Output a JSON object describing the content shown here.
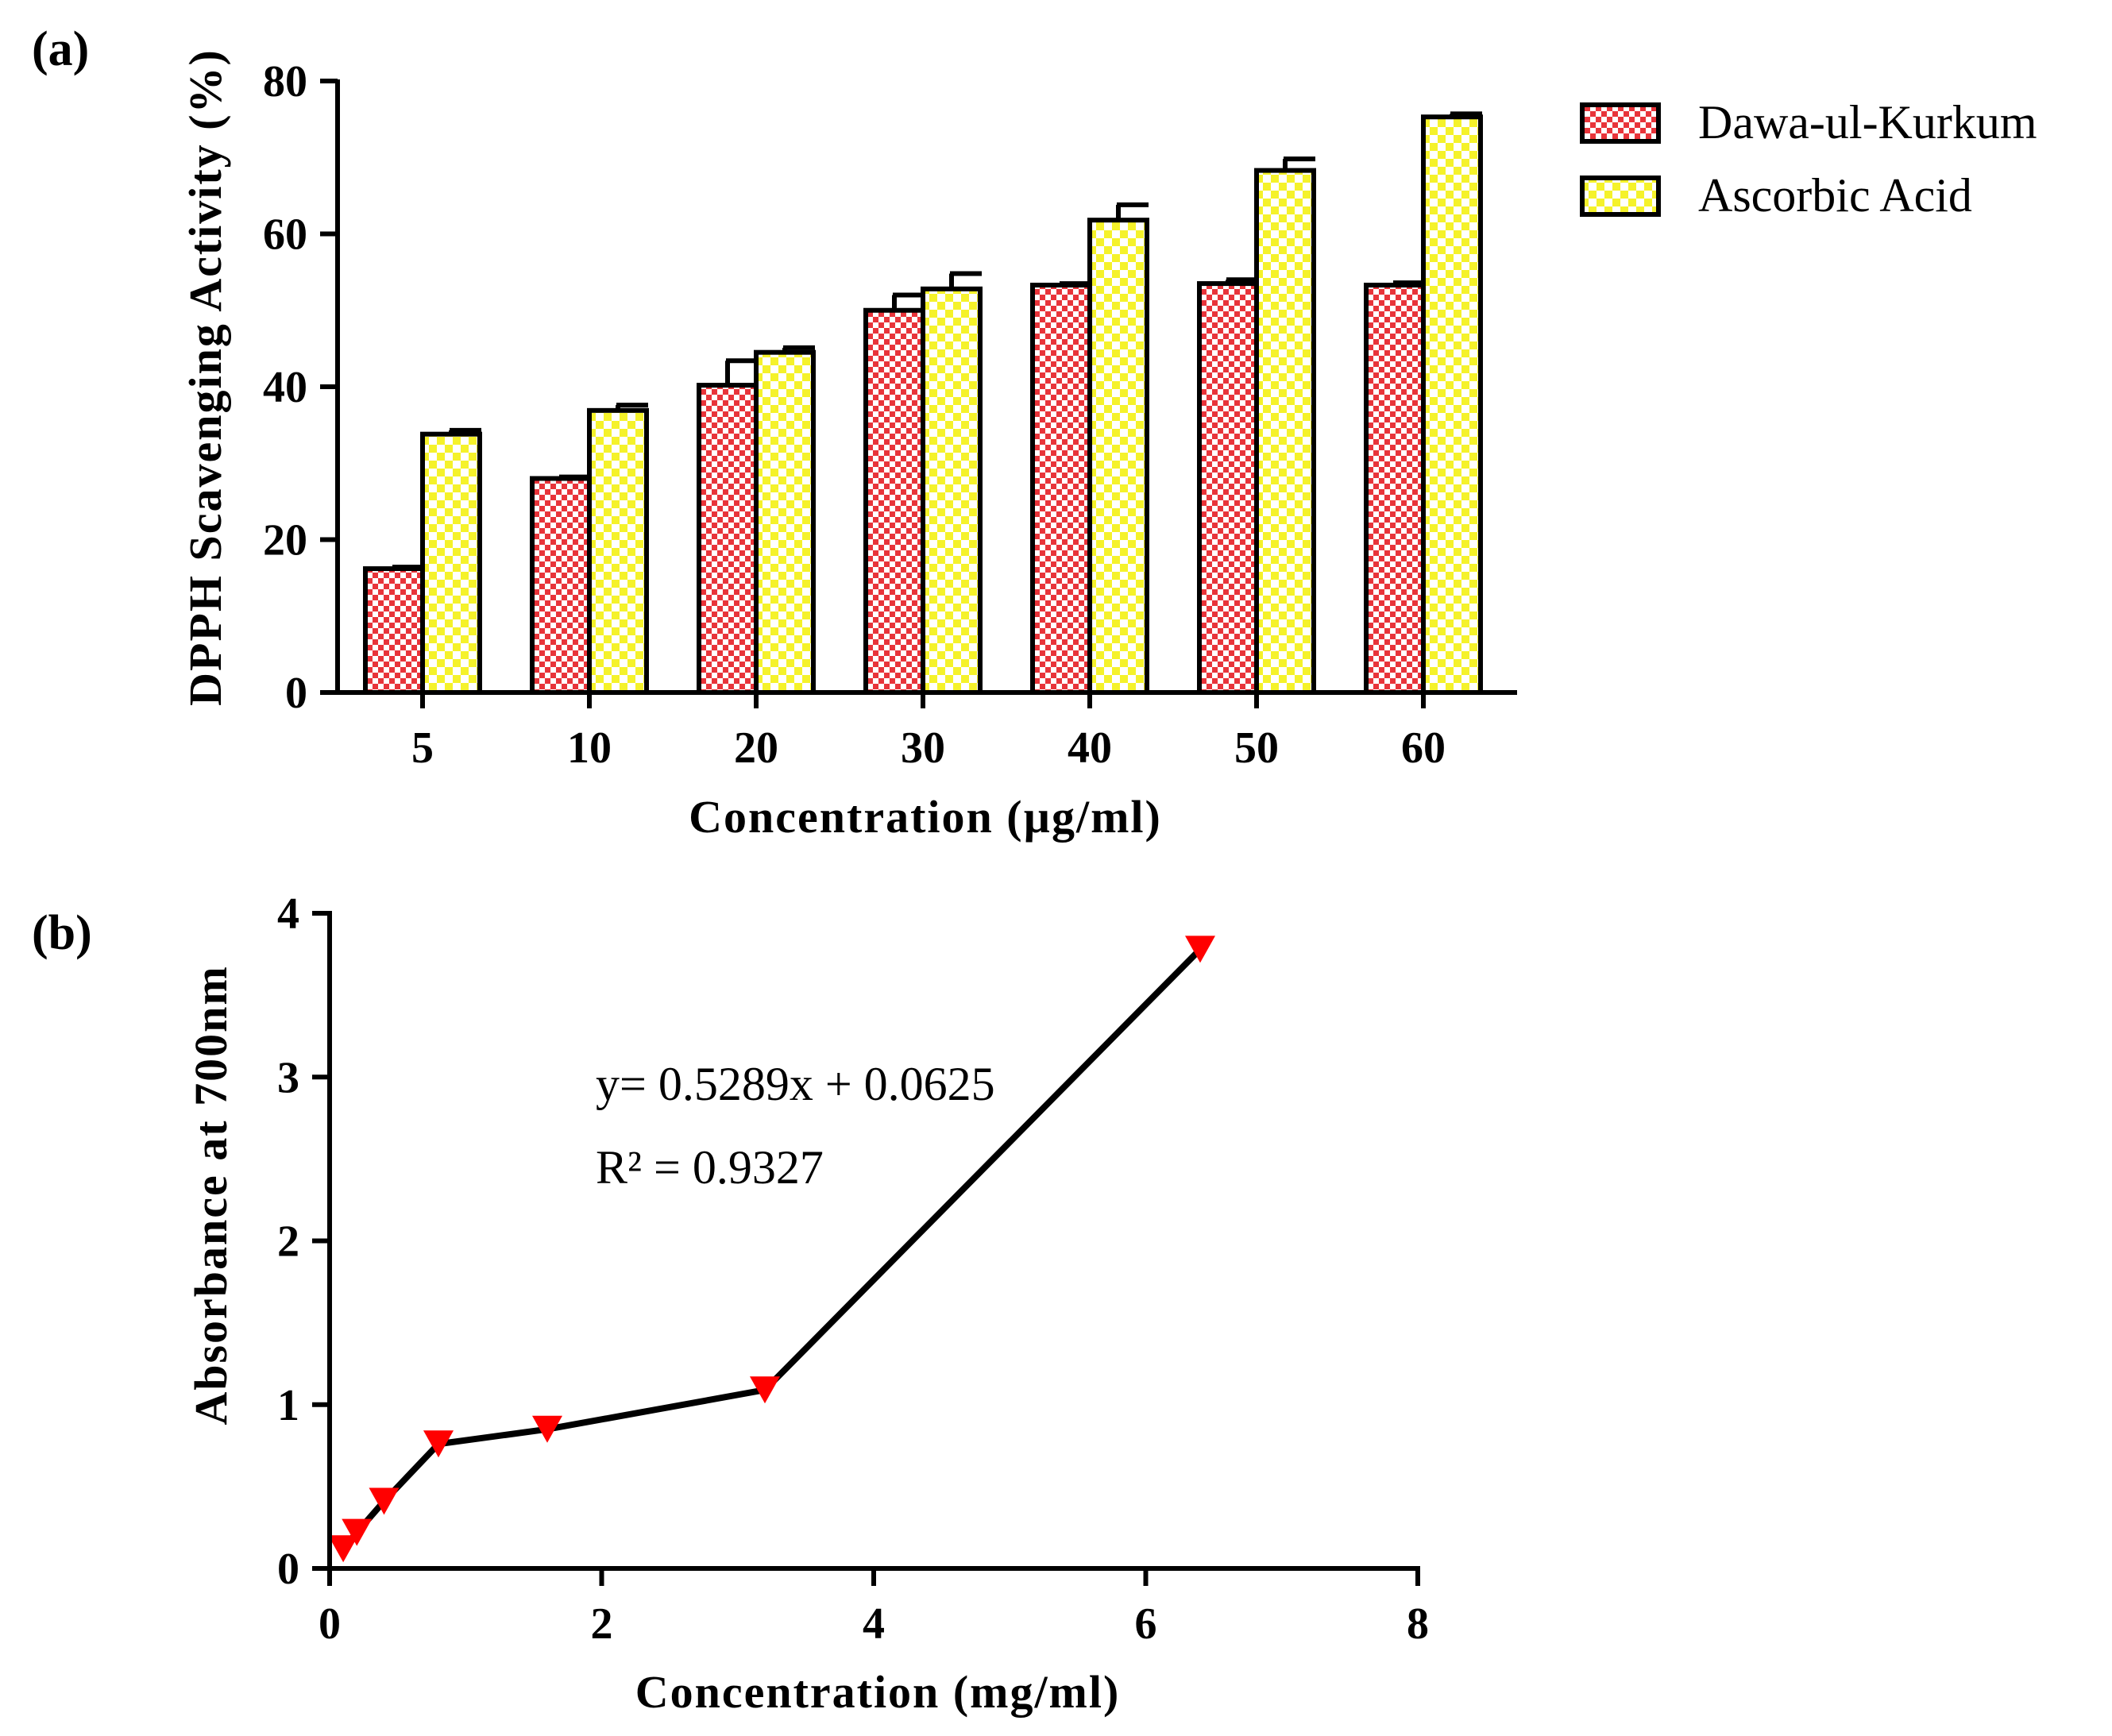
{
  "chart_data": [
    {
      "type": "bar",
      "panel_label": "(a)",
      "title": "",
      "xlabel": "Concentration (µg/ml)",
      "ylabel": "DPPH Scavenging Activity (%)",
      "ylim": [
        0,
        80
      ],
      "yticks": [
        0,
        20,
        40,
        60,
        80
      ],
      "categories": [
        "5",
        "10",
        "20",
        "30",
        "40",
        "50",
        "60"
      ],
      "legend_position": "top-right",
      "series": [
        {
          "name": "Dawa-ul-Kurkum",
          "color": "#e8343a",
          "pattern": "red-checker",
          "values": [
            16.2,
            28.0,
            40.2,
            50.0,
            53.3,
            53.5,
            53.3
          ],
          "errors": [
            0.2,
            0.2,
            3.2,
            2.0,
            0.2,
            0.5,
            0.3
          ]
        },
        {
          "name": "Ascorbic Acid",
          "color": "#f5f22a",
          "pattern": "yellow-checker",
          "values": [
            33.8,
            36.9,
            44.5,
            52.8,
            61.8,
            68.3,
            75.3
          ],
          "errors": [
            0.5,
            0.7,
            0.6,
            2.0,
            2.0,
            1.5,
            0.4
          ]
        }
      ]
    },
    {
      "type": "line",
      "panel_label": "(b)",
      "title": "",
      "xlabel": "Concentration (mg/ml)",
      "ylabel": "Absorbance at 700nm",
      "xlim": [
        0,
        8
      ],
      "ylim": [
        0,
        4
      ],
      "xticks": [
        0,
        2,
        4,
        6,
        8
      ],
      "yticks": [
        0,
        1,
        2,
        3,
        4
      ],
      "series": [
        {
          "name": "Absorbance",
          "color": "#ff0000",
          "marker": "triangle-down",
          "x": [
            0.1,
            0.2,
            0.4,
            0.8,
            1.6,
            3.2,
            6.4
          ],
          "y": [
            0.12,
            0.22,
            0.41,
            0.76,
            0.85,
            1.09,
            3.78
          ]
        }
      ],
      "annotations": [
        "y= 0.5289x + 0.0625",
        "R² = 0.9327"
      ]
    }
  ]
}
